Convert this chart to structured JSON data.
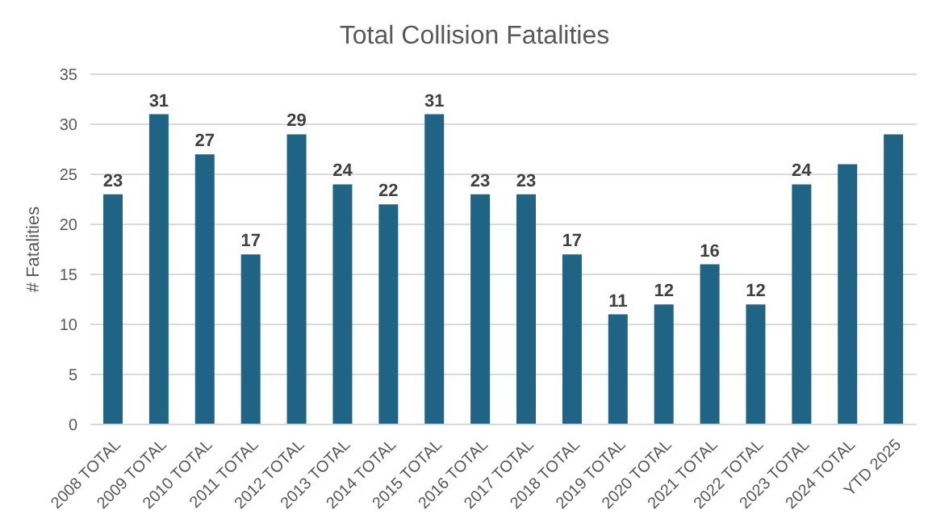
{
  "chart_data": {
    "type": "bar",
    "title": "Total Collision Fatalities",
    "ylabel": "# Fatalities",
    "categories": [
      "2008 TOTAL",
      "2009 TOTAL",
      "2010 TOTAL",
      "2011 TOTAL",
      "2012 TOTAL",
      "2013 TOTAL",
      "2014 TOTAL",
      "2015 TOTAL",
      "2016 TOTAL",
      "2017 TOTAL",
      "2018 TOTAL",
      "2019 TOTAL",
      "2020 TOTAL",
      "2021 TOTAL",
      "2022 TOTAL",
      "2023 TOTAL",
      "2024 TOTAL",
      "YTD 2025"
    ],
    "values": [
      23,
      31,
      27,
      17,
      29,
      24,
      22,
      31,
      23,
      23,
      17,
      11,
      12,
      16,
      12,
      24,
      26,
      29
    ],
    "value_labels": [
      "23",
      "31",
      "27",
      "17",
      "29",
      "24",
      "22",
      "31",
      "23",
      "23",
      "17",
      "11",
      "12",
      "16",
      "12",
      "24",
      null,
      null
    ],
    "color": "#1f6385",
    "ylim": [
      0,
      35
    ],
    "yticks": [
      0,
      5,
      10,
      15,
      20,
      25,
      30,
      35
    ],
    "grid": "y"
  }
}
